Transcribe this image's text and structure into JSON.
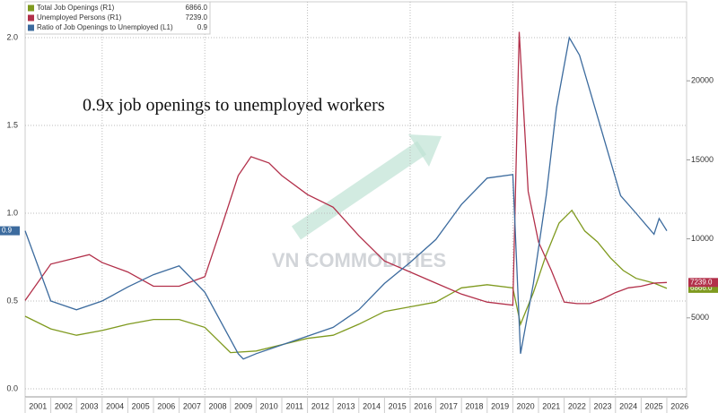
{
  "chart_data": {
    "type": "line",
    "annotation": "0.9x job openings to unemployed workers",
    "watermark": "VN COMMODITIES",
    "xlim": [
      2001,
      2026.77
    ],
    "xticks": [
      {
        "value": 2001,
        "label": "2001"
      },
      {
        "value": 2002,
        "label": "2002"
      },
      {
        "value": 2003,
        "label": "2003"
      },
      {
        "value": 2004,
        "label": "2004"
      },
      {
        "value": 2005,
        "label": "2005"
      },
      {
        "value": 2006,
        "label": "2006"
      },
      {
        "value": 2007,
        "label": "2007"
      },
      {
        "value": 2008,
        "label": "2008"
      },
      {
        "value": 2009,
        "label": "2009"
      },
      {
        "value": 2010,
        "label": "2010"
      },
      {
        "value": 2011,
        "label": "2011"
      },
      {
        "value": 2012,
        "label": "2012"
      },
      {
        "value": 2013,
        "label": "2013"
      },
      {
        "value": 2014,
        "label": "2014"
      },
      {
        "value": 2015,
        "label": "2015"
      },
      {
        "value": 2016,
        "label": "2016"
      },
      {
        "value": 2017,
        "label": "2017"
      },
      {
        "value": 2018,
        "label": "2018"
      },
      {
        "value": 2019,
        "label": "2019"
      },
      {
        "value": 2020,
        "label": "2020"
      },
      {
        "value": 2021,
        "label": "2021"
      },
      {
        "value": 2022,
        "label": "2022"
      },
      {
        "value": 2023,
        "label": "2023"
      },
      {
        "value": 2024,
        "label": "2024"
      },
      {
        "value": 2025,
        "label": "2025"
      },
      {
        "value": 2026,
        "label": "2026"
      }
    ],
    "ylim": [
      -0.046,
      2.204
    ],
    "yticks": [
      {
        "value": 0,
        "label": "0.0"
      },
      0.5,
      {
        "value": 1,
        "label": "1.0"
      },
      1.5,
      {
        "value": 2,
        "label": "2.0"
      }
    ],
    "y2lim": [
      0,
      25000
    ],
    "y2ticks": [
      5000,
      10000,
      15000,
      20000
    ],
    "grid": true,
    "legend": "top-left",
    "series": [
      {
        "name": "Total Job Openings (R1)",
        "last_label": "6866.0",
        "color": "#7f9a1f",
        "axis": "y2",
        "x": [
          2001,
          2002,
          2003,
          2004,
          2005,
          2006,
          2007,
          2008,
          2009,
          2010,
          2011,
          2012,
          2013,
          2014,
          2015,
          2016,
          2017,
          2018,
          2019,
          2020,
          2020.3,
          2020.8,
          2021.3,
          2021.8,
          2022.3,
          2022.8,
          2023.3,
          2023.8,
          2024.3,
          2024.8,
          2025.5,
          2026
        ],
        "values": [
          5100,
          4300,
          3900,
          4200,
          4600,
          4900,
          4900,
          4400,
          2800,
          2900,
          3300,
          3700,
          3900,
          4600,
          5400,
          5700,
          6000,
          6900,
          7100,
          6900,
          4600,
          6600,
          9000,
          11000,
          11800,
          10500,
          9800,
          8800,
          8000,
          7500,
          7200,
          6866
        ]
      },
      {
        "name": "Unemployed Persons (R1)",
        "last_label": "7239.0",
        "color": "#b2304a",
        "axis": "y2",
        "x": [
          2001,
          2002,
          2003.5,
          2004,
          2005,
          2006,
          2007,
          2008,
          2008.7,
          2009.3,
          2009.8,
          2010.5,
          2011,
          2012,
          2013,
          2014,
          2015,
          2016,
          2017,
          2018,
          2019,
          2020,
          2020.25,
          2020.6,
          2021,
          2021.5,
          2022,
          2022.5,
          2023,
          2023.5,
          2024,
          2024.5,
          2025,
          2025.5,
          2026
        ],
        "values": [
          6100,
          8400,
          9000,
          8500,
          7900,
          7000,
          7000,
          7600,
          11000,
          14000,
          15200,
          14800,
          14000,
          12800,
          12000,
          10200,
          8600,
          7900,
          7200,
          6500,
          6000,
          5800,
          23100,
          13000,
          9800,
          8000,
          6000,
          5900,
          5900,
          6200,
          6600,
          6900,
          7000,
          7200,
          7239
        ]
      },
      {
        "name": "Ratio of Job Openings to Unemployed (L1)",
        "last_label": "0.9",
        "color": "#3c6b9e",
        "axis": "y",
        "x": [
          2001,
          2002,
          2003,
          2004,
          2005,
          2006,
          2007,
          2008,
          2009.3,
          2009.5,
          2010,
          2011,
          2012,
          2013,
          2014,
          2015,
          2016,
          2017,
          2018,
          2019,
          2020,
          2020.3,
          2020.8,
          2021.3,
          2021.7,
          2022.2,
          2022.6,
          2023,
          2023.5,
          2024.2,
          2024.8,
          2025.5,
          2025.7,
          2026
        ],
        "values": [
          0.9,
          0.5,
          0.45,
          0.5,
          0.58,
          0.65,
          0.7,
          0.55,
          0.2,
          0.17,
          0.2,
          0.25,
          0.3,
          0.35,
          0.45,
          0.6,
          0.72,
          0.85,
          1.05,
          1.2,
          1.22,
          0.2,
          0.6,
          1.1,
          1.6,
          2.0,
          1.9,
          1.7,
          1.45,
          1.1,
          1.0,
          0.88,
          0.97,
          0.9
        ]
      }
    ]
  }
}
